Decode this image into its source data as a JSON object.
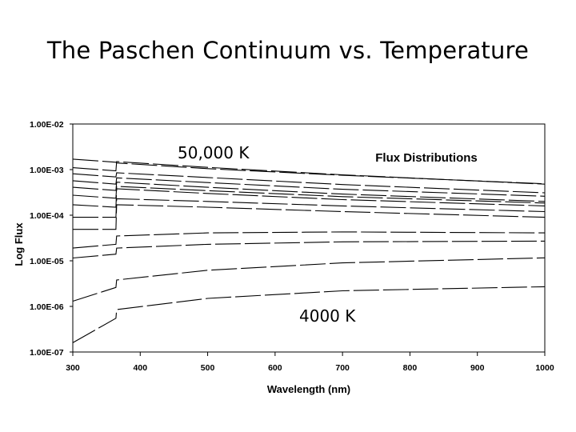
{
  "slide": {
    "title": "The Paschen Continuum vs. Temperature"
  },
  "chart_data": {
    "type": "line",
    "title": "Flux Distributions",
    "xlabel": "Wavelength (nm)",
    "ylabel": "Log Flux",
    "xlim": [
      300,
      1000
    ],
    "ylim_log10": [
      -7,
      -2
    ],
    "y_scale": "log",
    "x_ticks": [
      "300",
      "400",
      "500",
      "600",
      "700",
      "800",
      "900",
      "1000"
    ],
    "y_ticks": [
      "1.00E-02",
      "1.00E-03",
      "1.00E-04",
      "1.00E-05",
      "1.00E-06",
      "1.00E-07"
    ],
    "grid": false,
    "legend": "none",
    "annotations": {
      "hot_label": "50,000 K",
      "cool_label": "4000 K"
    },
    "series": [
      {
        "x": [
          300,
          364,
          365,
          500,
          700,
          1000
        ],
        "y": [
          0.0017,
          0.00145,
          0.0014,
          0.00105,
          0.00075,
          0.00049
        ]
      },
      {
        "x": [
          300,
          364,
          365,
          500,
          700,
          1000
        ],
        "y": [
          0.0011,
          0.00094,
          0.0015,
          0.00112,
          0.00077,
          0.00048
        ]
      },
      {
        "x": [
          300,
          364,
          365,
          500,
          700,
          1000
        ],
        "y": [
          0.00081,
          0.00069,
          0.00085,
          0.00067,
          0.00047,
          0.00031
        ]
      },
      {
        "x": [
          300,
          364,
          365,
          500,
          700,
          1000
        ],
        "y": [
          0.00057,
          0.00048,
          0.00066,
          0.00052,
          0.00037,
          0.00026
        ]
      },
      {
        "x": [
          300,
          364,
          365,
          500,
          700,
          1000
        ],
        "y": [
          0.00041,
          0.00035,
          0.00053,
          0.00041,
          0.00029,
          0.0002
        ]
      },
      {
        "x": [
          300,
          364,
          365,
          500,
          700,
          1000
        ],
        "y": [
          0.000275,
          0.000235,
          0.00043,
          0.000345,
          0.000255,
          0.000185
        ]
      },
      {
        "x": [
          300,
          364,
          365,
          500,
          700,
          1000
        ],
        "y": [
          0.00017,
          0.00015,
          0.00038,
          0.0003,
          0.00022,
          0.00016
        ]
      },
      {
        "x": [
          300,
          364,
          365,
          500,
          700,
          1000
        ],
        "y": [
          9e-05,
          9e-05,
          0.00023,
          0.0002,
          0.00016,
          0.00012
        ]
      },
      {
        "x": [
          300,
          364,
          365,
          500,
          700,
          1000
        ],
        "y": [
          4.9e-05,
          4.9e-05,
          0.00017,
          0.00015,
          0.00012,
          9e-05
        ]
      },
      {
        "x": [
          300,
          364,
          365,
          500,
          700,
          1000
        ],
        "y": [
          1.9e-05,
          2.3e-05,
          3.5e-05,
          4.1e-05,
          4.3e-05,
          4.1e-05
        ]
      },
      {
        "x": [
          300,
          364,
          365,
          500,
          700,
          1000
        ],
        "y": [
          1.15e-05,
          1.4e-05,
          1.9e-05,
          2.3e-05,
          2.6e-05,
          2.7e-05
        ]
      },
      {
        "x": [
          300,
          364,
          365,
          500,
          700,
          1000
        ],
        "y": [
          1.3e-06,
          2.6e-06,
          3.8e-06,
          6.2e-06,
          9e-06,
          1.16e-05
        ]
      },
      {
        "x": [
          300,
          364,
          365,
          500,
          700,
          1000
        ],
        "y": [
          1.6e-07,
          5.5e-07,
          8.5e-07,
          1.5e-06,
          2.2e-06,
          2.7e-06
        ]
      }
    ]
  }
}
